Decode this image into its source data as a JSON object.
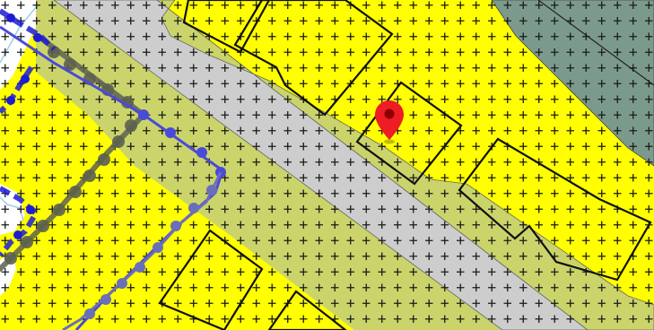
{
  "map": {
    "colors": {
      "background": "#ffffff",
      "zone_yellow": "#ffff00",
      "road_grey": "#cdcdcd",
      "verge_olive": "#cad46a",
      "forest": "#7b9a8c",
      "building_outline": "#111111",
      "plus_symbol": "#1a1a1a",
      "route_blue": "#1c1cd6",
      "route_blue_light": "#4a4ad9",
      "route_steel": "#6b6fb8",
      "route_dark": "#5d6150",
      "water_line": "#9ccfe6",
      "marker_red": "#ee1c24",
      "marker_dot": "#8b0000"
    },
    "layers": [
      {
        "name": "zoning-fill",
        "symbol": "plus-hatch"
      },
      {
        "name": "road-corridor"
      },
      {
        "name": "green-verge"
      },
      {
        "name": "forest-area"
      },
      {
        "name": "building-footprints"
      },
      {
        "name": "transit-routes"
      }
    ],
    "marker": {
      "icon": "map-pin-icon"
    }
  }
}
